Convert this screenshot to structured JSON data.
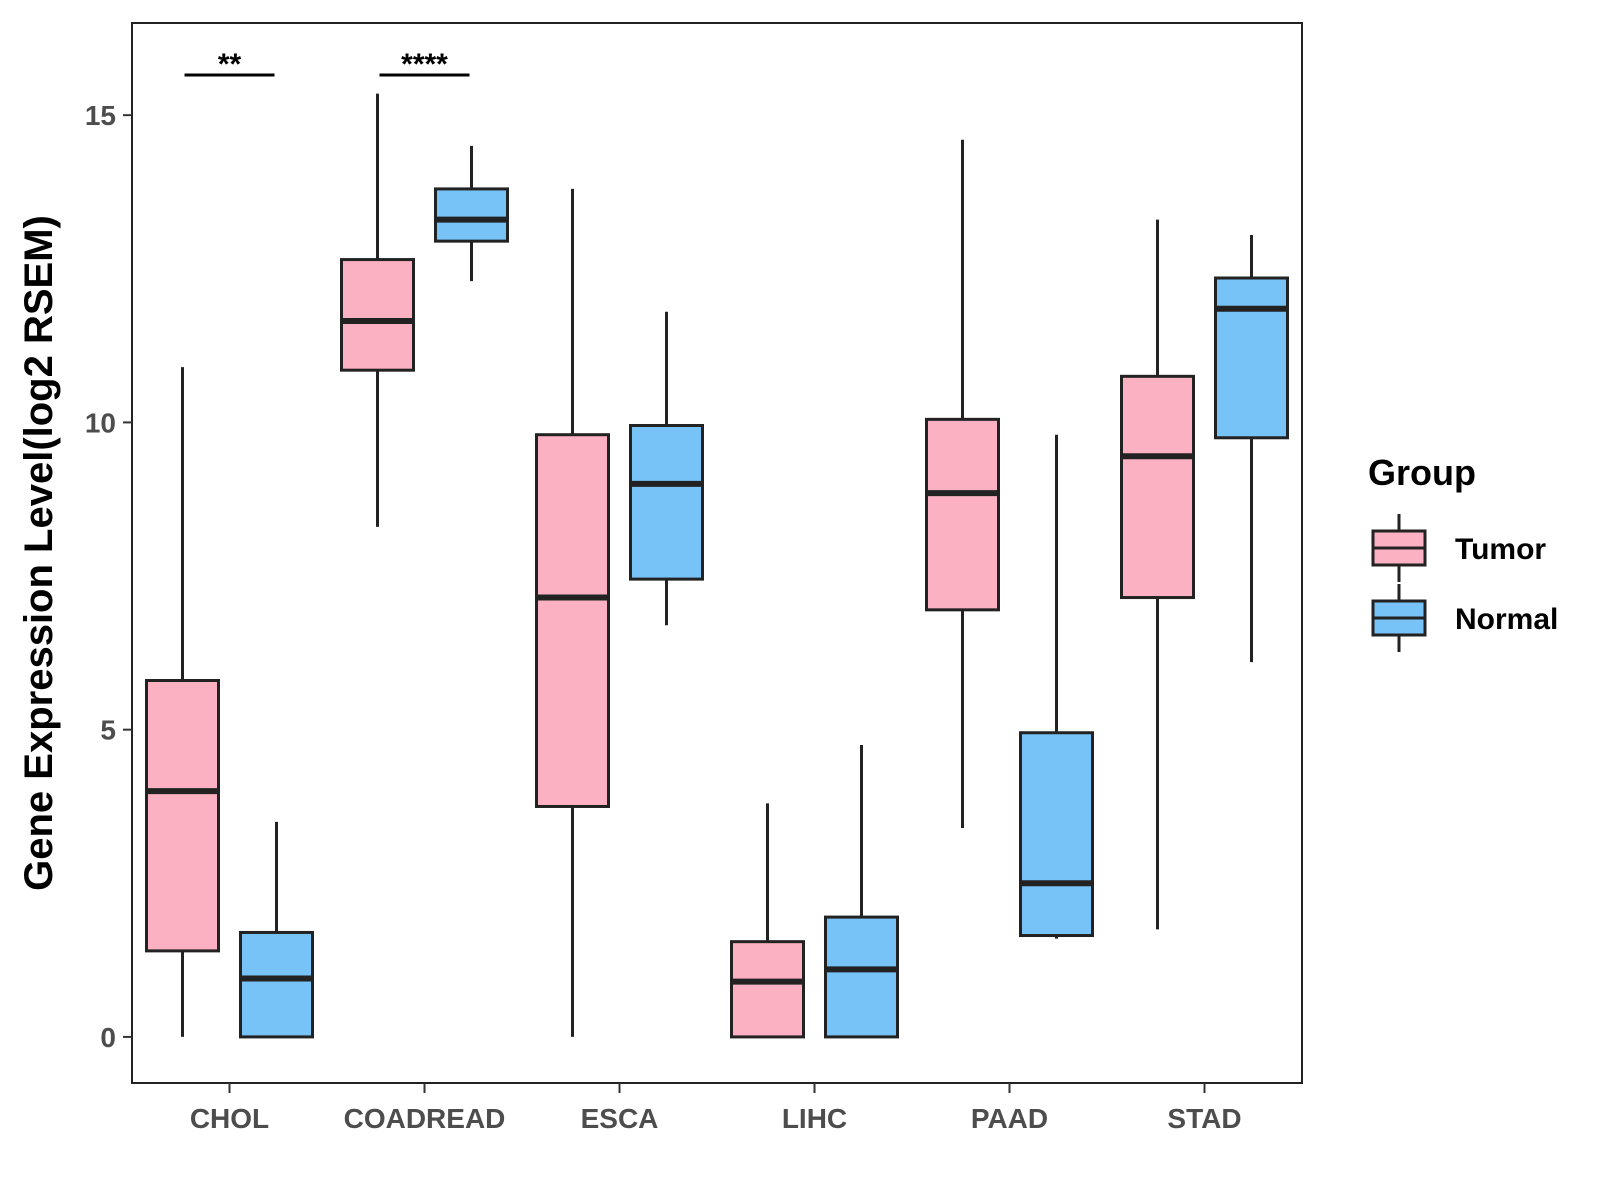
{
  "chart_data": {
    "type": "boxplot",
    "title": "",
    "xlabel": "",
    "ylabel": "Gene Expression Level(log2 RSEM)",
    "ylim": [
      -0.75,
      16.5
    ],
    "yticks": [
      0,
      5,
      10,
      15
    ],
    "ytick_labels": [
      "0",
      "5",
      "10",
      "15"
    ],
    "grid": false,
    "categories": [
      "CHOL",
      "COADREAD",
      "ESCA",
      "LIHC",
      "PAAD",
      "STAD"
    ],
    "legend": {
      "title": "Group",
      "position": "right",
      "entries": [
        "Tumor",
        "Normal"
      ]
    },
    "series": [
      {
        "name": "Tumor",
        "color": "#fcb1c2",
        "boxes": [
          {
            "category": "CHOL",
            "min": 0.0,
            "q1": 1.4,
            "median": 4.0,
            "q3": 5.8,
            "max": 10.9
          },
          {
            "category": "COADREAD",
            "min": 8.3,
            "q1": 10.85,
            "median": 11.65,
            "q3": 12.65,
            "max": 15.35
          },
          {
            "category": "ESCA",
            "min": 0.0,
            "q1": 3.75,
            "median": 7.15,
            "q3": 9.8,
            "max": 13.8
          },
          {
            "category": "LIHC",
            "min": 0.0,
            "q1": 0.0,
            "median": 0.9,
            "q3": 1.55,
            "max": 3.8
          },
          {
            "category": "PAAD",
            "min": 3.4,
            "q1": 6.95,
            "median": 8.85,
            "q3": 10.05,
            "max": 14.6
          },
          {
            "category": "STAD",
            "min": 1.75,
            "q1": 7.15,
            "median": 9.45,
            "q3": 10.75,
            "max": 13.3
          }
        ]
      },
      {
        "name": "Normal",
        "color": "#77c2f7",
        "boxes": [
          {
            "category": "CHOL",
            "min": 0.0,
            "q1": 0.0,
            "median": 0.95,
            "q3": 1.7,
            "max": 3.5
          },
          {
            "category": "COADREAD",
            "min": 12.3,
            "q1": 12.95,
            "median": 13.3,
            "q3": 13.8,
            "max": 14.5
          },
          {
            "category": "ESCA",
            "min": 6.7,
            "q1": 7.45,
            "median": 9.0,
            "q3": 9.95,
            "max": 11.8
          },
          {
            "category": "LIHC",
            "min": 0.0,
            "q1": 0.0,
            "median": 1.1,
            "q3": 1.95,
            "max": 4.75
          },
          {
            "category": "PAAD",
            "min": 1.6,
            "q1": 1.65,
            "median": 2.5,
            "q3": 4.95,
            "max": 9.8
          },
          {
            "category": "STAD",
            "min": 6.1,
            "q1": 9.75,
            "median": 11.85,
            "q3": 12.35,
            "max": 13.05
          }
        ]
      }
    ],
    "significance": [
      {
        "category": "CHOL",
        "label": "**"
      },
      {
        "category": "COADREAD",
        "label": "****"
      }
    ]
  }
}
